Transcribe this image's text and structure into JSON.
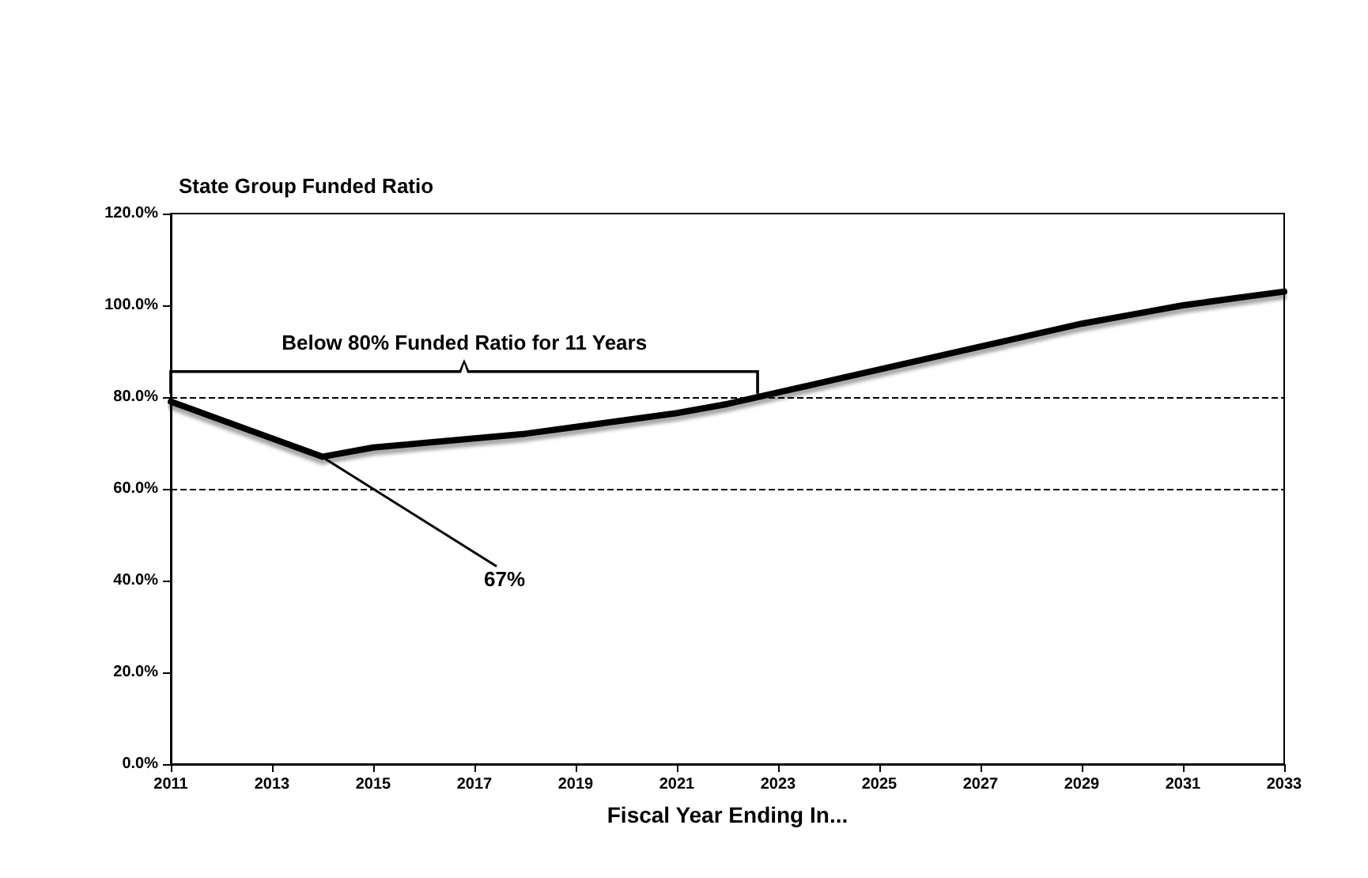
{
  "chart_data": {
    "type": "line",
    "title": "State Group Funded Ratio",
    "xlabel": "Fiscal Year Ending In...",
    "x": [
      2011,
      2012,
      2013,
      2014,
      2015,
      2016,
      2017,
      2018,
      2019,
      2020,
      2021,
      2022,
      2023,
      2024,
      2025,
      2026,
      2027,
      2028,
      2029,
      2030,
      2031,
      2032,
      2033
    ],
    "series": [
      {
        "color": "#000000",
        "values": [
          79,
          75,
          71,
          67,
          69,
          70,
          71,
          72,
          73.5,
          75,
          76.5,
          78.5,
          81,
          83.5,
          86,
          88.5,
          91,
          93.5,
          96,
          98,
          100,
          101.5,
          103
        ]
      }
    ],
    "xlim": [
      2011,
      2033
    ],
    "xticks": [
      2011,
      2013,
      2015,
      2017,
      2019,
      2021,
      2023,
      2025,
      2027,
      2029,
      2031,
      2033
    ],
    "ylim": [
      0,
      120
    ],
    "yticks": [
      {
        "value": 0,
        "label": "0.0%"
      },
      {
        "value": 20,
        "label": "20.0%"
      },
      {
        "value": 40,
        "label": "40.0%"
      },
      {
        "value": 60,
        "label": "60.0%"
      },
      {
        "value": 80,
        "label": "80.0%"
      },
      {
        "value": 100,
        "label": "100.0%"
      },
      {
        "value": 120,
        "label": "120.0%"
      }
    ],
    "ref_lines": [
      {
        "axis": "y",
        "value": 80,
        "line_style": "dashed"
      },
      {
        "axis": "y",
        "value": 60,
        "line_style": "dashed"
      }
    ],
    "annotations": [
      "Below 80% Funded Ratio for 11 Years",
      {
        "text": "67%",
        "x": 2014,
        "y": 67
      }
    ],
    "grid": false,
    "marker": "none",
    "line_style": "solid"
  }
}
